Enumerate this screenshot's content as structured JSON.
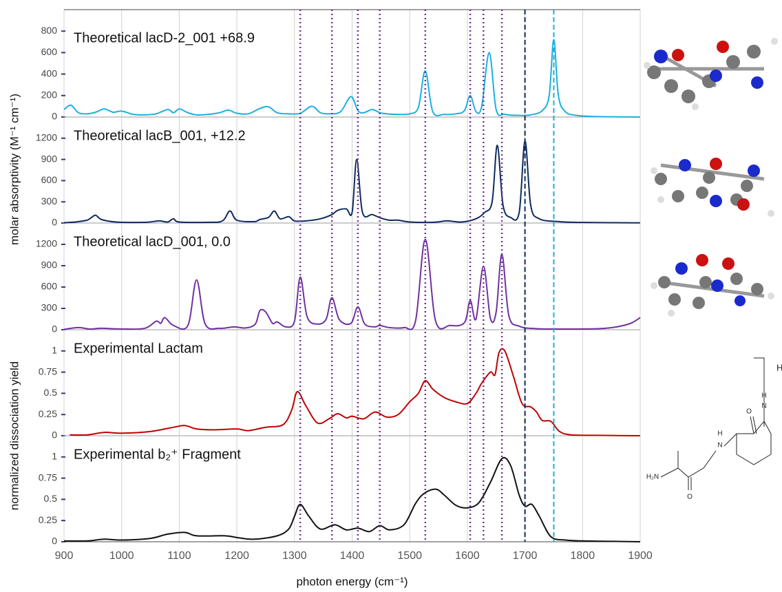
{
  "reference_lines": [
    {
      "x": 1310,
      "style": "dotted",
      "color": "#7030a0"
    },
    {
      "x": 1365,
      "style": "dotted",
      "color": "#7030a0"
    },
    {
      "x": 1410,
      "style": "dotted",
      "color": "#7030a0"
    },
    {
      "x": 1448,
      "style": "dotted",
      "color": "#7030a0"
    },
    {
      "x": 1527,
      "style": "dotted",
      "color": "#7030a0"
    },
    {
      "x": 1605,
      "style": "dotted",
      "color": "#7030a0"
    },
    {
      "x": 1628,
      "style": "dotted",
      "color": "#7030a0"
    },
    {
      "x": 1660,
      "style": "dotted",
      "color": "#7030a0"
    },
    {
      "x": 1700,
      "style": "dashed",
      "color": "#0d2a5c"
    },
    {
      "x": 1750,
      "style": "dashed",
      "color": "#1ab0e0"
    }
  ],
  "structure": {
    "labels": [
      "H₂N",
      "O",
      "H",
      "N",
      "O",
      "H",
      "N",
      "H⁺"
    ]
  },
  "chart_data": [
    {
      "type": "line",
      "title": "Theoretical lacD-2_001 +68.9",
      "xlim": [
        900,
        1900
      ],
      "xticks": [
        900,
        1000,
        1100,
        1200,
        1300,
        1400,
        1500,
        1600,
        1700,
        1800,
        1900
      ],
      "ylim": [
        0,
        1000
      ],
      "yticks": [
        0,
        200,
        400,
        600,
        800
      ],
      "grid": true,
      "x": [
        900,
        912,
        925,
        940,
        955,
        970,
        985,
        1000,
        1020,
        1040,
        1060,
        1080,
        1090,
        1100,
        1115,
        1130,
        1150,
        1170,
        1185,
        1200,
        1220,
        1240,
        1255,
        1270,
        1290,
        1310,
        1330,
        1345,
        1360,
        1380,
        1398,
        1410,
        1420,
        1435,
        1448,
        1460,
        1480,
        1500,
        1515,
        1527,
        1540,
        1560,
        1580,
        1595,
        1605,
        1615,
        1625,
        1638,
        1650,
        1665,
        1690,
        1710,
        1730,
        1742,
        1750,
        1758,
        1770,
        1790,
        1820,
        1860,
        1900
      ],
      "series": [
        {
          "color": "#1ab0e0",
          "values": [
            70,
            110,
            40,
            30,
            45,
            75,
            45,
            55,
            25,
            20,
            30,
            70,
            40,
            75,
            40,
            20,
            25,
            40,
            65,
            35,
            30,
            80,
            95,
            40,
            30,
            35,
            100,
            40,
            30,
            50,
            190,
            60,
            40,
            70,
            40,
            30,
            25,
            30,
            90,
            430,
            50,
            25,
            30,
            60,
            200,
            50,
            100,
            600,
            70,
            25,
            15,
            20,
            60,
            200,
            720,
            200,
            50,
            15,
            5,
            2,
            0
          ]
        }
      ]
    },
    {
      "type": "line",
      "title": "Theoretical lacB_001, +12.2",
      "xlim": [
        900,
        1900
      ],
      "xticks": [
        900,
        1000,
        1100,
        1200,
        1300,
        1400,
        1500,
        1600,
        1700,
        1800,
        1900
      ],
      "ylim": [
        0,
        1500
      ],
      "yticks": [
        0,
        300,
        600,
        900,
        1200
      ],
      "grid": true,
      "x": [
        900,
        920,
        940,
        948,
        955,
        965,
        990,
        1040,
        1065,
        1080,
        1090,
        1100,
        1150,
        1175,
        1188,
        1200,
        1230,
        1240,
        1255,
        1265,
        1275,
        1290,
        1300,
        1320,
        1345,
        1365,
        1375,
        1390,
        1400,
        1408,
        1418,
        1435,
        1450,
        1465,
        1480,
        1500,
        1540,
        1565,
        1590,
        1615,
        1630,
        1643,
        1652,
        1662,
        1675,
        1690,
        1700,
        1710,
        1725,
        1760,
        1800,
        1900
      ],
      "series": [
        {
          "color": "#0d2a5c",
          "values": [
            5,
            15,
            40,
            80,
            110,
            50,
            15,
            10,
            30,
            15,
            60,
            15,
            10,
            30,
            170,
            40,
            20,
            50,
            80,
            170,
            60,
            90,
            30,
            30,
            60,
            120,
            180,
            200,
            150,
            900,
            150,
            120,
            70,
            40,
            40,
            15,
            10,
            30,
            15,
            60,
            150,
            300,
            1100,
            250,
            80,
            150,
            1160,
            250,
            60,
            20,
            8,
            3
          ]
        }
      ]
    },
    {
      "type": "line",
      "title": "Theoretical lacD_001, 0.0",
      "xlim": [
        900,
        1900
      ],
      "xticks": [
        900,
        1000,
        1100,
        1200,
        1300,
        1400,
        1500,
        1600,
        1700,
        1800,
        1900
      ],
      "ylim": [
        0,
        1500
      ],
      "yticks": [
        0,
        300,
        600,
        900,
        1200
      ],
      "grid": true,
      "x": [
        900,
        925,
        945,
        965,
        1000,
        1040,
        1060,
        1068,
        1075,
        1090,
        1115,
        1130,
        1145,
        1170,
        1195,
        1215,
        1232,
        1240,
        1250,
        1262,
        1270,
        1285,
        1300,
        1310,
        1322,
        1340,
        1355,
        1365,
        1378,
        1398,
        1410,
        1422,
        1440,
        1448,
        1465,
        1490,
        1510,
        1527,
        1545,
        1570,
        1595,
        1605,
        1615,
        1628,
        1640,
        1650,
        1660,
        1672,
        1690,
        1720,
        1780,
        1840,
        1880,
        1900
      ],
      "series": [
        {
          "color": "#7030a0",
          "values": [
            5,
            30,
            10,
            20,
            10,
            20,
            120,
            90,
            170,
            60,
            60,
            700,
            80,
            20,
            40,
            25,
            80,
            270,
            250,
            90,
            110,
            40,
            120,
            740,
            180,
            80,
            150,
            450,
            140,
            90,
            320,
            80,
            40,
            60,
            30,
            30,
            120,
            1270,
            120,
            60,
            100,
            410,
            150,
            890,
            160,
            250,
            1060,
            200,
            50,
            15,
            10,
            20,
            80,
            170
          ]
        }
      ]
    },
    {
      "type": "line",
      "title": "Experimental Lactam",
      "ylabel": "normalized dissociation yield",
      "xlim": [
        900,
        1900
      ],
      "xticks": [
        900,
        1000,
        1100,
        1200,
        1300,
        1400,
        1500,
        1600,
        1700,
        1800,
        1900
      ],
      "ylim": [
        0,
        1.25
      ],
      "yticks": [
        0,
        0.25,
        0.5,
        0.75,
        1
      ],
      "grid": true,
      "x": [
        910,
        940,
        970,
        1000,
        1050,
        1090,
        1110,
        1130,
        1160,
        1200,
        1220,
        1250,
        1280,
        1295,
        1305,
        1320,
        1340,
        1360,
        1375,
        1390,
        1400,
        1420,
        1440,
        1460,
        1480,
        1500,
        1515,
        1527,
        1540,
        1560,
        1580,
        1600,
        1615,
        1625,
        1640,
        1648,
        1655,
        1665,
        1680,
        1695,
        1710,
        1720,
        1730,
        1745,
        1760,
        1780,
        1820,
        1900
      ],
      "series": [
        {
          "color": "#c00000",
          "values": [
            0.01,
            0.01,
            0.04,
            0.03,
            0.05,
            0.1,
            0.12,
            0.08,
            0.07,
            0.08,
            0.06,
            0.1,
            0.13,
            0.3,
            0.52,
            0.35,
            0.15,
            0.2,
            0.26,
            0.21,
            0.23,
            0.2,
            0.28,
            0.22,
            0.25,
            0.4,
            0.5,
            0.65,
            0.55,
            0.45,
            0.4,
            0.38,
            0.5,
            0.62,
            0.75,
            0.72,
            0.98,
            1,
            0.7,
            0.38,
            0.34,
            0.28,
            0.18,
            0.17,
            0.05,
            0.01,
            0.005,
            0
          ]
        }
      ]
    },
    {
      "type": "line",
      "title": "Experimental b₂⁺ Fragment",
      "xlabel": "photon energy (cm⁻¹)",
      "xlim": [
        900,
        1900
      ],
      "xticks": [
        900,
        1000,
        1100,
        1200,
        1300,
        1400,
        1500,
        1600,
        1700,
        1800,
        1900
      ],
      "ylim": [
        0,
        1.25
      ],
      "yticks": [
        0,
        0.25,
        0.5,
        0.75,
        1
      ],
      "grid": true,
      "x": [
        900,
        940,
        970,
        1000,
        1050,
        1080,
        1110,
        1130,
        1180,
        1200,
        1230,
        1270,
        1290,
        1300,
        1310,
        1325,
        1345,
        1370,
        1390,
        1410,
        1430,
        1448,
        1465,
        1490,
        1510,
        1525,
        1545,
        1560,
        1580,
        1600,
        1620,
        1640,
        1660,
        1675,
        1690,
        1700,
        1712,
        1725,
        1745,
        1770,
        1800,
        1850,
        1900
      ],
      "series": [
        {
          "color": "#111111",
          "values": [
            0.01,
            0.01,
            0.03,
            0.02,
            0.04,
            0.09,
            0.11,
            0.07,
            0.07,
            0.05,
            0.03,
            0.07,
            0.15,
            0.3,
            0.44,
            0.3,
            0.15,
            0.2,
            0.14,
            0.16,
            0.12,
            0.19,
            0.14,
            0.2,
            0.45,
            0.57,
            0.62,
            0.55,
            0.43,
            0.4,
            0.46,
            0.7,
            0.98,
            0.9,
            0.55,
            0.42,
            0.44,
            0.3,
            0.06,
            0.02,
            0.01,
            0.005,
            0
          ]
        }
      ]
    }
  ],
  "ylabel_top": "molar absorptivity (M⁻¹ cm⁻¹)"
}
